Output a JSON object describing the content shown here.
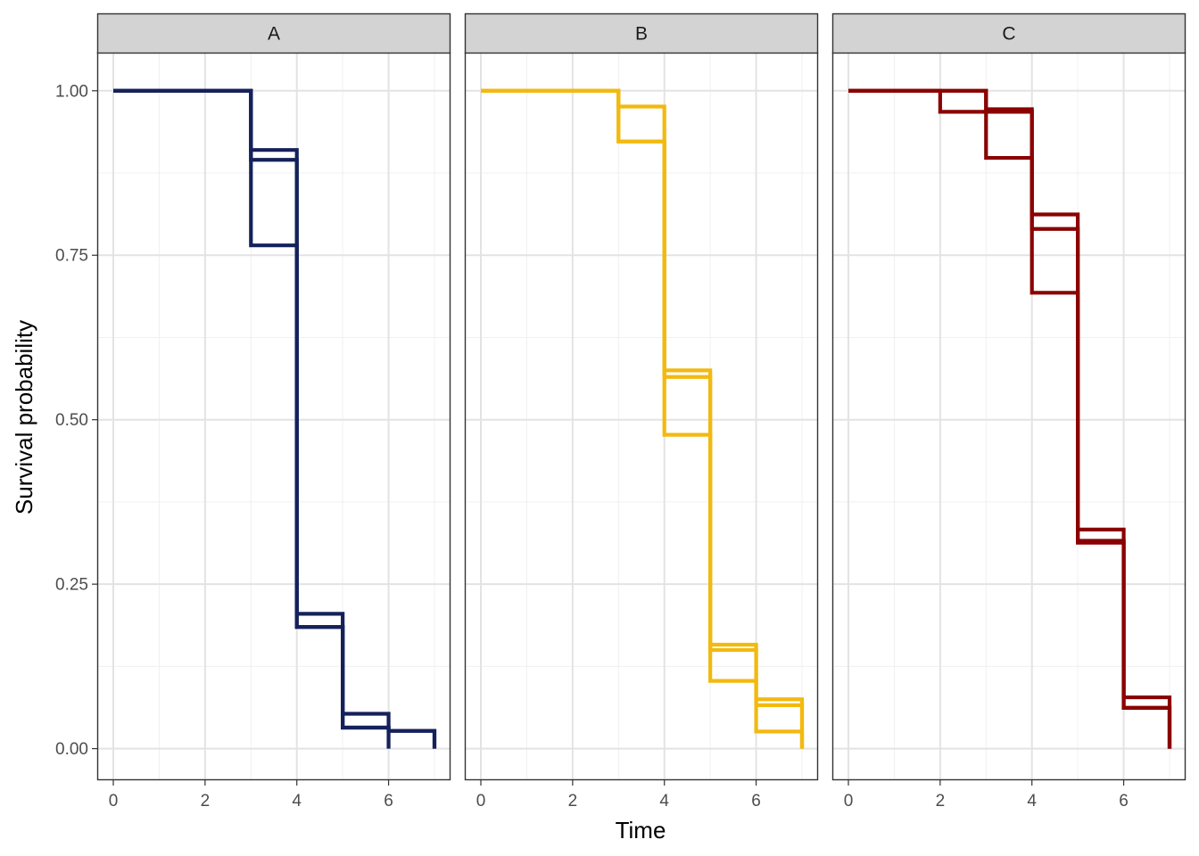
{
  "chart_data": {
    "type": "line",
    "xlabel": "Time",
    "ylabel": "Survival probability",
    "xlim": [
      -0.35,
      7.35
    ],
    "ylim": [
      -0.048,
      1.058
    ],
    "x_ticks": [
      0,
      2,
      4,
      6
    ],
    "y_ticks": [
      0.0,
      0.25,
      0.5,
      0.75,
      1.0
    ],
    "y_tick_labels": [
      "0.00",
      "0.25",
      "0.50",
      "0.75",
      "1.00"
    ],
    "grid": true,
    "panels": [
      {
        "name": "A",
        "color": "#14215b",
        "series": [
          {
            "x": [
              0,
              3,
              4,
              5,
              6,
              7
            ],
            "y": [
              1.0,
              0.91,
              0.205,
              0.053,
              0.027,
              0.0
            ]
          },
          {
            "x": [
              0,
              3,
              4,
              5,
              6,
              7
            ],
            "y": [
              1.0,
              0.895,
              0.185,
              0.032,
              0.027,
              0.0
            ]
          },
          {
            "x": [
              0,
              3,
              4,
              5,
              6
            ],
            "y": [
              1.0,
              0.765,
              0.185,
              0.032,
              0.0
            ]
          }
        ]
      },
      {
        "name": "B",
        "color": "#f2b90f",
        "series": [
          {
            "x": [
              0,
              3,
              4,
              5,
              6,
              7
            ],
            "y": [
              1.0,
              0.976,
              0.575,
              0.158,
              0.075,
              0.0
            ]
          },
          {
            "x": [
              0,
              3,
              4,
              5,
              6,
              7
            ],
            "y": [
              1.0,
              0.923,
              0.565,
              0.15,
              0.066,
              0.0
            ]
          },
          {
            "x": [
              0,
              3,
              4,
              5,
              6,
              7
            ],
            "y": [
              1.0,
              0.923,
              0.477,
              0.103,
              0.026,
              0.0
            ]
          }
        ]
      },
      {
        "name": "C",
        "color": "#8b0000",
        "series": [
          {
            "x": [
              0,
              2,
              3,
              4,
              5,
              6,
              7
            ],
            "y": [
              1.0,
              1.0,
              0.972,
              0.812,
              0.333,
              0.078,
              0.0
            ]
          },
          {
            "x": [
              0,
              2,
              3,
              4,
              5,
              6,
              7
            ],
            "y": [
              1.0,
              0.968,
              0.968,
              0.79,
              0.316,
              0.062,
              0.0
            ]
          },
          {
            "x": [
              0,
              2,
              3,
              4,
              5,
              6,
              7
            ],
            "y": [
              1.0,
              1.0,
              0.898,
              0.693,
              0.313,
              0.062,
              0.0
            ]
          }
        ]
      }
    ]
  }
}
